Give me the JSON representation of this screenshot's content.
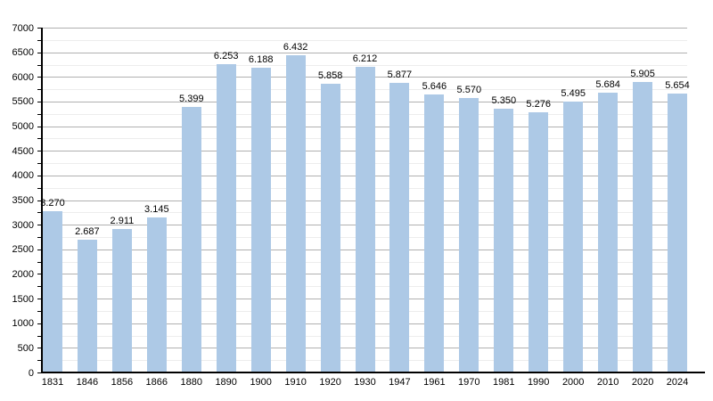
{
  "chart_data": {
    "type": "bar",
    "title": "",
    "xlabel": "",
    "ylabel": "",
    "categories": [
      "1831",
      "1846",
      "1856",
      "1866",
      "1880",
      "1890",
      "1900",
      "1910",
      "1920",
      "1930",
      "1947",
      "1961",
      "1970",
      "1981",
      "1990",
      "2000",
      "2010",
      "2020",
      "2024"
    ],
    "values": [
      3270,
      2687,
      2911,
      3145,
      5399,
      6253,
      6188,
      6432,
      5858,
      6212,
      5877,
      5646,
      5570,
      5350,
      5276,
      5495,
      5684,
      5905,
      5654
    ],
    "value_labels": [
      "3.270",
      "2.687",
      "2.911",
      "3.145",
      "5.399",
      "6.253",
      "6.188",
      "6.432",
      "5.858",
      "6.212",
      "5.877",
      "5.646",
      "5.570",
      "5.350",
      "5.276",
      "5.495",
      "5.684",
      "5.905",
      "5.654"
    ],
    "ylim": [
      0,
      7000
    ],
    "y_major_step": 500,
    "y_minor_step": 250,
    "y_tick_labels": [
      "0",
      "500",
      "1000",
      "1500",
      "2000",
      "2500",
      "3000",
      "3500",
      "4000",
      "4500",
      "5000",
      "5500",
      "6000",
      "6500",
      "7000"
    ],
    "grid": true,
    "legend": false,
    "colors": {
      "bar": "#adc9e6",
      "major_grid": "#b0b0b0",
      "minor_grid": "#ededed",
      "axis": "#000000",
      "text": "#000000",
      "background": "#ffffff"
    }
  }
}
